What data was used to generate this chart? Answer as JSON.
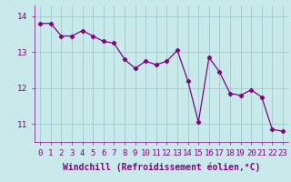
{
  "x": [
    0,
    1,
    2,
    3,
    4,
    5,
    6,
    7,
    8,
    9,
    10,
    11,
    12,
    13,
    14,
    15,
    16,
    17,
    18,
    19,
    20,
    21,
    22,
    23
  ],
  "y": [
    13.8,
    13.8,
    13.45,
    13.45,
    13.6,
    13.45,
    13.3,
    13.25,
    12.8,
    12.55,
    12.75,
    12.65,
    12.75,
    13.05,
    12.2,
    11.05,
    12.85,
    12.45,
    11.85,
    11.8,
    11.95,
    11.75,
    10.85,
    10.8
  ],
  "line_color": "#880088",
  "marker": "D",
  "marker_size": 2.2,
  "bg_color": "#c8eaea",
  "grid_color": "#a0cccc",
  "xlabel": "Windchill (Refroidissement éolien,°C)",
  "xlabel_fontsize": 7,
  "tick_fontsize": 6.5,
  "ylim": [
    10.5,
    14.3
  ],
  "yticks": [
    11,
    12,
    13,
    14
  ],
  "xlim": [
    -0.5,
    23.5
  ],
  "xtick_labels": [
    "0",
    "1",
    "2",
    "3",
    "4",
    "5",
    "6",
    "7",
    "8",
    "9",
    "10",
    "11",
    "12",
    "13",
    "14",
    "15",
    "16",
    "17",
    "18",
    "19",
    "20",
    "21",
    "22",
    "23"
  ]
}
